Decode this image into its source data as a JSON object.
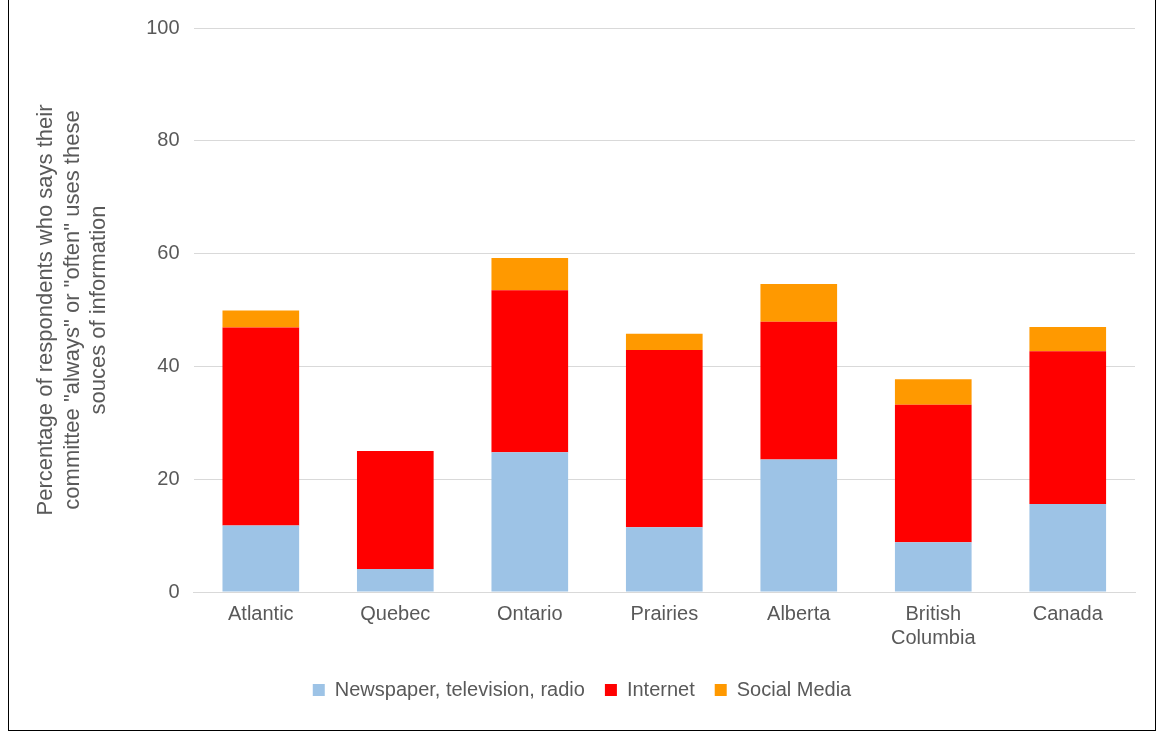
{
  "chart_data": {
    "type": "bar",
    "stacked": true,
    "ylabel": "Percentage of respondents who says their committee \"always\" or \"often\" uses these souces of information",
    "categories": [
      "Atlantic",
      "Quebec",
      "Ontario",
      "Prairies",
      "Alberta",
      "British Columbia",
      "Canada"
    ],
    "series": [
      {
        "name": "Newspaper, television, radio",
        "color": "#9dc3e6",
        "values": [
          11.8,
          4.1,
          24.8,
          11.5,
          23.5,
          8.8,
          15.6
        ]
      },
      {
        "name": "Internet",
        "color": "#ff0000",
        "values": [
          35.1,
          20.9,
          28.7,
          31.4,
          24.4,
          24.4,
          27.1
        ]
      },
      {
        "name": "Social Media",
        "color": "#ff9900",
        "values": [
          3.0,
          0,
          5.7,
          2.9,
          6.7,
          4.5,
          4.3
        ]
      }
    ],
    "ylim": [
      0,
      100
    ],
    "yticks": [
      0,
      20,
      40,
      60,
      80,
      100
    ],
    "grid": "y",
    "legend": "bottom"
  }
}
